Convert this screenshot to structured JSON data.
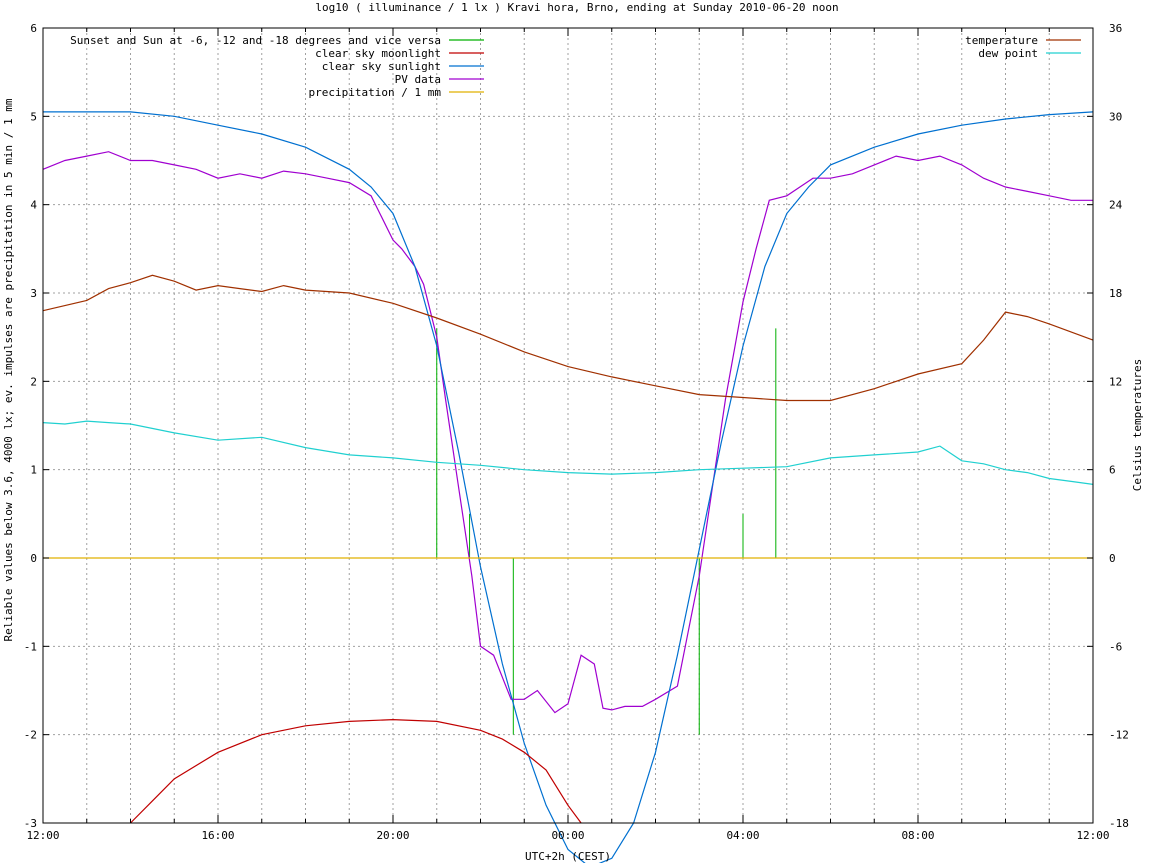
{
  "chart_data": {
    "type": "line",
    "title": "log10 ( illuminance / 1 lx ) Kravi hora, Brno, ending at Sunday 2010-06-20 noon",
    "xlabel": "UTC+2h (CEST)",
    "ylabel": "Reliable values below 3.6, 4000 lx; ev. impulses are precipitation in 5 min / 1 mm",
    "y2label": "Celsius temperatures",
    "xlim": [
      0,
      24
    ],
    "ylim": [
      -3,
      6
    ],
    "y2lim": [
      -18,
      36
    ],
    "x_ticks": [
      {
        "value": 0,
        "label": "12:00"
      },
      {
        "value": 4,
        "label": "16:00"
      },
      {
        "value": 8,
        "label": "20:00"
      },
      {
        "value": 12,
        "label": "00:00"
      },
      {
        "value": 16,
        "label": "04:00"
      },
      {
        "value": 20,
        "label": "08:00"
      },
      {
        "value": 24,
        "label": "12:00"
      }
    ],
    "y_ticks": [
      {
        "value": -3,
        "label": "-3"
      },
      {
        "value": -2,
        "label": "-2"
      },
      {
        "value": -1,
        "label": "-1"
      },
      {
        "value": 0,
        "label": "0"
      },
      {
        "value": 1,
        "label": "1"
      },
      {
        "value": 2,
        "label": "2"
      },
      {
        "value": 3,
        "label": "3"
      },
      {
        "value": 4,
        "label": "4"
      },
      {
        "value": 5,
        "label": "5"
      },
      {
        "value": 6,
        "label": "6"
      }
    ],
    "y2_ticks": [
      {
        "value": -18,
        "label": "-18"
      },
      {
        "value": -12,
        "label": "-12"
      },
      {
        "value": -6,
        "label": "-6"
      },
      {
        "value": 0,
        "label": "0"
      },
      {
        "value": 6,
        "label": "6"
      },
      {
        "value": 12,
        "label": "12"
      },
      {
        "value": 18,
        "label": "18"
      },
      {
        "value": 24,
        "label": "24"
      },
      {
        "value": 30,
        "label": "30"
      },
      {
        "value": 36,
        "label": "36"
      }
    ],
    "grid": true,
    "legend_left": {
      "placement": "top-left",
      "entries": [
        {
          "label": "Sunset and Sun at -6, -12 and -18 degrees and vice versa",
          "color": "#00b000"
        },
        {
          "label": "clear sky moonlight",
          "color": "#c00000"
        },
        {
          "label": "clear sky sunlight",
          "color": "#0070d0"
        },
        {
          "label": "PV data",
          "color": "#a000d0"
        },
        {
          "label": "precipitation / 1 mm",
          "color": "#e0b000"
        }
      ]
    },
    "legend_right": {
      "placement": "top-right",
      "entries": [
        {
          "label": "temperature",
          "color": "#a03000"
        },
        {
          "label": "dew point",
          "color": "#20d0d0"
        }
      ]
    },
    "series": [
      {
        "name": "PV data",
        "axis": "y",
        "color": "#a000d0",
        "x": [
          0,
          0.5,
          1,
          1.5,
          2,
          2.5,
          3,
          3.5,
          4,
          4.5,
          5,
          5.5,
          6,
          6.5,
          7,
          7.5,
          8,
          8.2,
          8.5,
          8.7,
          9,
          9.2,
          9.5,
          9.8,
          10,
          10.3,
          10.7,
          11,
          11.3,
          11.7,
          12,
          12.3,
          12.6,
          12.8,
          13,
          13.3,
          13.7,
          14,
          14.5,
          15,
          15.3,
          15.6,
          16,
          16.3,
          16.6,
          17,
          17.3,
          17.6,
          18,
          18.5,
          19,
          19.5,
          20,
          20.5,
          21,
          21.5,
          22,
          22.5,
          23,
          23.5,
          24
        ],
        "y": [
          4.4,
          4.5,
          4.55,
          4.6,
          4.5,
          4.5,
          4.45,
          4.4,
          4.3,
          4.35,
          4.3,
          4.38,
          4.35,
          4.3,
          4.25,
          4.1,
          3.6,
          3.5,
          3.3,
          3.1,
          2.5,
          1.8,
          0.8,
          -0.2,
          -1.0,
          -1.1,
          -1.6,
          -1.6,
          -1.5,
          -1.75,
          -1.65,
          -1.1,
          -1.2,
          -1.7,
          -1.72,
          -1.68,
          -1.68,
          -1.6,
          -1.45,
          -0.2,
          0.8,
          1.8,
          2.9,
          3.5,
          4.05,
          4.1,
          4.2,
          4.3,
          4.3,
          4.35,
          4.45,
          4.55,
          4.5,
          4.55,
          4.45,
          4.3,
          4.2,
          4.15,
          4.1,
          4.05,
          4.05
        ]
      },
      {
        "name": "clear sky sunlight",
        "axis": "y",
        "color": "#0070d0",
        "x": [
          0,
          1,
          2,
          3,
          4,
          5,
          6,
          7,
          7.5,
          8,
          8.5,
          9,
          9.5,
          10,
          10.5,
          11,
          11.5,
          12,
          12.5,
          13,
          13.5,
          14,
          14.5,
          15,
          15.5,
          16,
          16.5,
          17,
          17.5,
          18,
          19,
          20,
          21,
          22,
          23,
          24
        ],
        "y": [
          5.05,
          5.05,
          5.05,
          5.0,
          4.9,
          4.8,
          4.65,
          4.4,
          4.2,
          3.9,
          3.3,
          2.4,
          1.2,
          -0.1,
          -1.2,
          -2.1,
          -2.8,
          -3.3,
          -3.5,
          -3.4,
          -3.0,
          -2.2,
          -1.1,
          0.1,
          1.3,
          2.4,
          3.3,
          3.9,
          4.2,
          4.45,
          4.65,
          4.8,
          4.9,
          4.97,
          5.02,
          5.05
        ]
      },
      {
        "name": "clear sky moonlight",
        "axis": "y",
        "color": "#c00000",
        "x": [
          2,
          2.5,
          3,
          4,
          5,
          6,
          7,
          8,
          9,
          10,
          10.5,
          11,
          11.5,
          12,
          12.3
        ],
        "y": [
          -3.0,
          -2.75,
          -2.5,
          -2.2,
          -2.0,
          -1.9,
          -1.85,
          -1.83,
          -1.85,
          -1.95,
          -2.05,
          -2.2,
          -2.4,
          -2.8,
          -3.0
        ]
      },
      {
        "name": "temperature",
        "axis": "y2",
        "color": "#a03000",
        "x": [
          0,
          1,
          1.5,
          2,
          2.5,
          3,
          3.5,
          4,
          4.5,
          5,
          5.5,
          6,
          7,
          8,
          9,
          10,
          11,
          12,
          13,
          14,
          15,
          16,
          17,
          18,
          19,
          20,
          21,
          21.5,
          22,
          22.5,
          23,
          24
        ],
        "y": [
          16.8,
          17.5,
          18.3,
          18.7,
          19.2,
          18.8,
          18.2,
          18.5,
          18.3,
          18.1,
          18.5,
          18.2,
          18.0,
          17.3,
          16.3,
          15.2,
          14.0,
          13.0,
          12.3,
          11.7,
          11.1,
          10.9,
          10.7,
          10.7,
          11.5,
          12.5,
          13.2,
          14.8,
          16.7,
          16.4,
          15.9,
          14.8
        ]
      },
      {
        "name": "dew point",
        "axis": "y2",
        "color": "#20d0d0",
        "x": [
          0,
          0.5,
          1,
          1.5,
          2,
          3,
          4,
          5,
          6,
          7,
          8,
          9,
          10,
          11,
          12,
          13,
          14,
          15,
          16,
          17,
          18,
          19,
          20,
          20.5,
          21,
          21.5,
          22,
          22.5,
          23,
          23.5,
          24
        ],
        "y": [
          9.2,
          9.1,
          9.3,
          9.2,
          9.1,
          8.5,
          8.0,
          8.2,
          7.5,
          7.0,
          6.8,
          6.5,
          6.3,
          6.0,
          5.8,
          5.7,
          5.8,
          6.0,
          6.1,
          6.2,
          6.8,
          7.0,
          7.2,
          7.6,
          6.6,
          6.4,
          6.0,
          5.8,
          5.4,
          5.2,
          5.0
        ]
      },
      {
        "name": "precipitation / 1 mm",
        "axis": "y",
        "color": "#e0b000",
        "x": [
          0,
          24
        ],
        "y": [
          0,
          0
        ]
      }
    ],
    "impulses": {
      "name": "Sunset and Sun at -6, -12 and -18 degrees and vice versa",
      "color": "#00b000",
      "points": [
        {
          "x": 9.0,
          "y": 2.6
        },
        {
          "x": 9.75,
          "y": 0.5
        },
        {
          "x": 10.75,
          "y": -2.0
        },
        {
          "x": 15.0,
          "y": -2.0
        },
        {
          "x": 16.0,
          "y": 0.5
        },
        {
          "x": 16.75,
          "y": 2.6
        }
      ]
    }
  }
}
